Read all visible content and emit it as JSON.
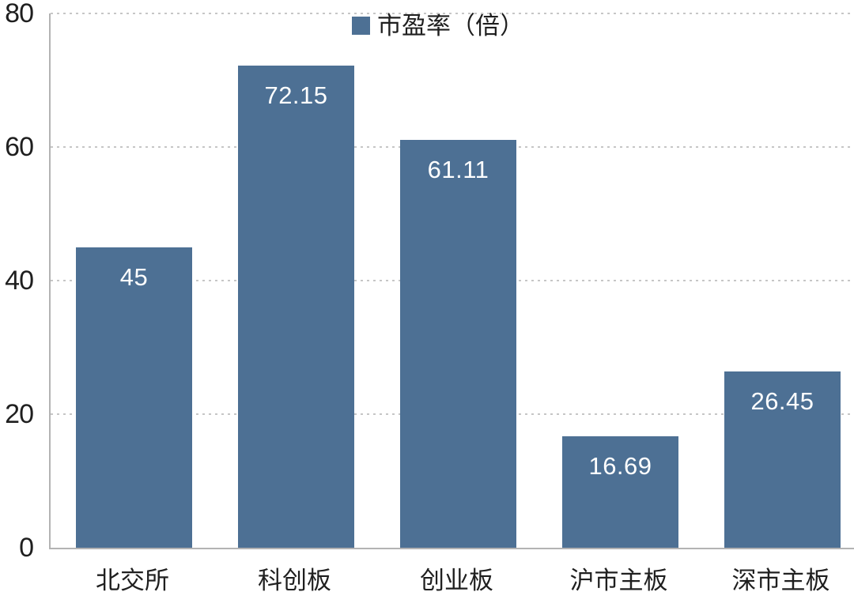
{
  "chart_data": {
    "type": "bar",
    "title": "",
    "legend_label": "市盈率（倍）",
    "legend_position": "top-center",
    "categories": [
      "北交所",
      "科创板",
      "创业板",
      "沪市主板",
      "深市主板"
    ],
    "values": [
      45,
      72.15,
      61.11,
      16.69,
      26.45
    ],
    "value_labels": [
      "45",
      "72.15",
      "61.11",
      "16.69",
      "26.45"
    ],
    "xlabel": "",
    "ylabel": "",
    "ylim": [
      0,
      80
    ],
    "yticks": [
      0,
      20,
      40,
      60,
      80
    ],
    "grid": "horizontal-dashed",
    "colors": {
      "bar": "#4d7094",
      "value_label": "#ffffff",
      "gridline": "#c6c6c6",
      "axis_line": "#b3b3b3",
      "text": "#1f1f1f",
      "background": "#ffffff"
    }
  }
}
